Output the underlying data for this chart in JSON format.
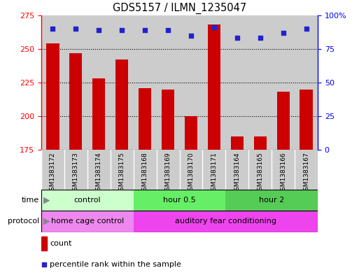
{
  "title": "GDS5157 / ILMN_1235047",
  "samples": [
    "GSM1383172",
    "GSM1383173",
    "GSM1383174",
    "GSM1383175",
    "GSM1383168",
    "GSM1383169",
    "GSM1383170",
    "GSM1383171",
    "GSM1383164",
    "GSM1383165",
    "GSM1383166",
    "GSM1383167"
  ],
  "counts": [
    254,
    247,
    228,
    242,
    221,
    220,
    200,
    268,
    185,
    185,
    218,
    220
  ],
  "percentiles": [
    90,
    90,
    89,
    89,
    89,
    89,
    85,
    91,
    83,
    83,
    87,
    90
  ],
  "ylim_left": [
    175,
    275
  ],
  "ylim_right": [
    0,
    100
  ],
  "yticks_left": [
    175,
    200,
    225,
    250,
    275
  ],
  "yticks_right": [
    0,
    25,
    50,
    75,
    100
  ],
  "bar_color": "#cc0000",
  "dot_color": "#2222cc",
  "time_groups": [
    {
      "label": "control",
      "start": 0,
      "end": 4,
      "color": "#ccffcc"
    },
    {
      "label": "hour 0.5",
      "start": 4,
      "end": 8,
      "color": "#66ee66"
    },
    {
      "label": "hour 2",
      "start": 8,
      "end": 12,
      "color": "#55cc55"
    }
  ],
  "protocol_groups": [
    {
      "label": "home cage control",
      "start": 0,
      "end": 4,
      "color": "#ee88ee"
    },
    {
      "label": "auditory fear conditioning",
      "start": 4,
      "end": 12,
      "color": "#ee44ee"
    }
  ],
  "legend_items": [
    {
      "color": "#cc0000",
      "label": "count"
    },
    {
      "color": "#2222cc",
      "label": "percentile rank within the sample"
    }
  ],
  "sample_bg": "#cccccc",
  "grid_yticks": [
    200,
    225,
    250
  ]
}
